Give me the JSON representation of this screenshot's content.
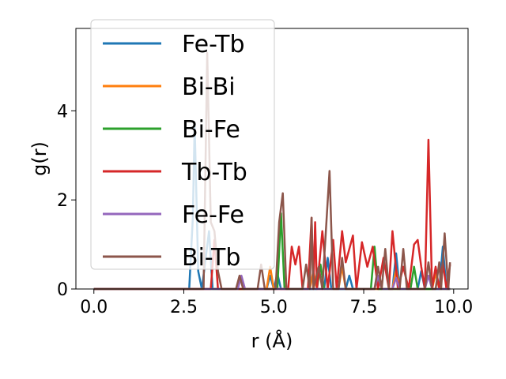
{
  "chart_data": {
    "type": "line",
    "xlabel": "r (Å)",
    "ylabel": "g(r)",
    "xlim": [
      -0.5,
      10.4
    ],
    "ylim": [
      0,
      5.85
    ],
    "xticks": [
      0.0,
      2.5,
      5.0,
      7.5,
      10.0
    ],
    "xtick_labels": [
      "0.0",
      "2.5",
      "5.0",
      "7.5",
      "10.0"
    ],
    "yticks": [
      0,
      2,
      4
    ],
    "ytick_labels": [
      "0",
      "2",
      "4"
    ],
    "grid": false,
    "legend_position": "upper-left",
    "series": [
      {
        "name": "Fe-Tb",
        "color": "#1f77b4",
        "points": [
          [
            0,
            0
          ],
          [
            2.65,
            0
          ],
          [
            2.75,
            1.6
          ],
          [
            2.8,
            3.7
          ],
          [
            2.9,
            0.4
          ],
          [
            3.0,
            0
          ],
          [
            3.2,
            1.3
          ],
          [
            3.3,
            0
          ],
          [
            4.8,
            0
          ],
          [
            4.9,
            0.3
          ],
          [
            5.0,
            0
          ],
          [
            5.1,
            0.35
          ],
          [
            5.2,
            0
          ],
          [
            6.4,
            0
          ],
          [
            6.5,
            0.7
          ],
          [
            6.6,
            0
          ],
          [
            7.0,
            0
          ],
          [
            7.1,
            0.3
          ],
          [
            7.2,
            0
          ],
          [
            8.3,
            0
          ],
          [
            8.4,
            0.8
          ],
          [
            8.5,
            0
          ],
          [
            9.0,
            0
          ],
          [
            9.1,
            0.4
          ],
          [
            9.2,
            0
          ],
          [
            9.6,
            0
          ],
          [
            9.7,
            0.95
          ],
          [
            9.8,
            0
          ],
          [
            9.9,
            0
          ]
        ]
      },
      {
        "name": "Bi-Bi",
        "color": "#ff7f0e",
        "points": [
          [
            0,
            0
          ],
          [
            4.8,
            0
          ],
          [
            4.9,
            0.5
          ],
          [
            5.0,
            0
          ],
          [
            6.0,
            0
          ],
          [
            6.1,
            0.4
          ],
          [
            6.2,
            0
          ],
          [
            6.8,
            0
          ],
          [
            6.9,
            0.5
          ],
          [
            7.0,
            0
          ],
          [
            8.3,
            0
          ],
          [
            8.4,
            0.45
          ],
          [
            8.5,
            0
          ],
          [
            9.4,
            0
          ],
          [
            9.5,
            0.35
          ],
          [
            9.6,
            0
          ],
          [
            9.9,
            0
          ]
        ]
      },
      {
        "name": "Bi-Fe",
        "color": "#2ca02c",
        "points": [
          [
            0,
            0
          ],
          [
            5.1,
            0
          ],
          [
            5.2,
            1.7
          ],
          [
            5.3,
            0
          ],
          [
            6.2,
            0
          ],
          [
            6.3,
            0.55
          ],
          [
            6.4,
            0
          ],
          [
            7.7,
            0
          ],
          [
            7.8,
            0.95
          ],
          [
            7.9,
            0
          ],
          [
            8.8,
            0
          ],
          [
            8.9,
            0.5
          ],
          [
            9.0,
            0
          ],
          [
            9.9,
            0
          ]
        ]
      },
      {
        "name": "Tb-Tb",
        "color": "#d62728",
        "points": [
          [
            0,
            0
          ],
          [
            3.25,
            0
          ],
          [
            3.35,
            1.1
          ],
          [
            3.45,
            0
          ],
          [
            5.4,
            0
          ],
          [
            5.5,
            0.95
          ],
          [
            5.6,
            0.55
          ],
          [
            5.7,
            0.95
          ],
          [
            5.8,
            0
          ],
          [
            5.95,
            0
          ],
          [
            6.05,
            1.6
          ],
          [
            6.1,
            0
          ],
          [
            6.15,
            1.5
          ],
          [
            6.2,
            0
          ],
          [
            6.35,
            1.3
          ],
          [
            6.5,
            0
          ],
          [
            6.65,
            1.1
          ],
          [
            6.75,
            0
          ],
          [
            6.9,
            1.3
          ],
          [
            7.0,
            0.6
          ],
          [
            7.2,
            1.2
          ],
          [
            7.3,
            0
          ],
          [
            7.45,
            1.05
          ],
          [
            7.6,
            0.5
          ],
          [
            7.75,
            0.95
          ],
          [
            7.9,
            0
          ],
          [
            8.05,
            0.7
          ],
          [
            8.2,
            0
          ],
          [
            8.3,
            1.3
          ],
          [
            8.45,
            0
          ],
          [
            8.6,
            0.5
          ],
          [
            8.75,
            0
          ],
          [
            8.9,
            1.0
          ],
          [
            9.0,
            1.1
          ],
          [
            9.1,
            0.5
          ],
          [
            9.2,
            0
          ],
          [
            9.3,
            3.35
          ],
          [
            9.4,
            0
          ],
          [
            9.5,
            0.5
          ],
          [
            9.6,
            0
          ],
          [
            9.7,
            0.6
          ],
          [
            9.8,
            0
          ],
          [
            9.9,
            0.55
          ]
        ]
      },
      {
        "name": "Fe-Fe",
        "color": "#9467bd",
        "points": [
          [
            0,
            0
          ],
          [
            4.0,
            0
          ],
          [
            4.1,
            0.3
          ],
          [
            4.2,
            0
          ],
          [
            7.8,
            0
          ],
          [
            7.9,
            0.3
          ],
          [
            8.0,
            0
          ],
          [
            8.3,
            0
          ],
          [
            8.4,
            0.25
          ],
          [
            8.5,
            0
          ],
          [
            9.2,
            0
          ],
          [
            9.3,
            0.3
          ],
          [
            9.4,
            0
          ],
          [
            9.9,
            0
          ]
        ]
      },
      {
        "name": "Bi-Tb",
        "color": "#8c564b",
        "points": [
          [
            0,
            0
          ],
          [
            3.05,
            0
          ],
          [
            3.15,
            5.3
          ],
          [
            3.25,
            1.5
          ],
          [
            3.35,
            1.3
          ],
          [
            3.45,
            0.4
          ],
          [
            3.55,
            0
          ],
          [
            3.95,
            0
          ],
          [
            4.05,
            0.3
          ],
          [
            4.15,
            0
          ],
          [
            4.55,
            0
          ],
          [
            4.65,
            0.55
          ],
          [
            4.75,
            0
          ],
          [
            5.05,
            0
          ],
          [
            5.15,
            1.5
          ],
          [
            5.25,
            2.15
          ],
          [
            5.35,
            0
          ],
          [
            5.8,
            0
          ],
          [
            5.9,
            0.55
          ],
          [
            6.0,
            0
          ],
          [
            6.05,
            1.6
          ],
          [
            6.1,
            0
          ],
          [
            6.25,
            0.5
          ],
          [
            6.35,
            0
          ],
          [
            6.55,
            2.65
          ],
          [
            6.65,
            0
          ],
          [
            6.8,
            0
          ],
          [
            6.9,
            0.7
          ],
          [
            7.0,
            0
          ],
          [
            7.8,
            0
          ],
          [
            7.9,
            0.5
          ],
          [
            8.0,
            0
          ],
          [
            8.1,
            0.9
          ],
          [
            8.2,
            0
          ],
          [
            8.5,
            0
          ],
          [
            8.6,
            0.9
          ],
          [
            8.7,
            0
          ],
          [
            9.2,
            0
          ],
          [
            9.3,
            0.6
          ],
          [
            9.4,
            0
          ],
          [
            9.5,
            0
          ],
          [
            9.6,
            0.6
          ],
          [
            9.65,
            0
          ],
          [
            9.75,
            1.25
          ],
          [
            9.85,
            0
          ],
          [
            9.9,
            0.6
          ]
        ]
      }
    ]
  }
}
